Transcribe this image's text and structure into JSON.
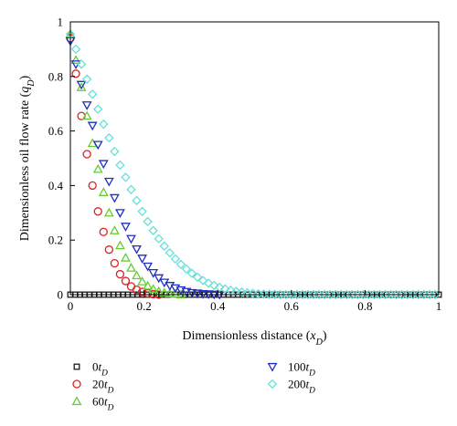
{
  "chart_data": {
    "type": "scatter",
    "xlabel": "Dimensionless distance (x_D)",
    "ylabel": "Dimensionless oil flow rate (q_D)",
    "xlim": [
      0,
      1
    ],
    "ylim": [
      0,
      1
    ],
    "x_ticks": [
      "0",
      "0.2",
      "0.4",
      "0.6",
      "0.8",
      "1"
    ],
    "y_ticks": [
      "0",
      "0.2",
      "0.4",
      "0.6",
      "0.8",
      "1"
    ],
    "grid": false,
    "legend_placement": "bottom",
    "series": [
      {
        "name": "0t_D",
        "marker": "square",
        "color": "#1a1a1a",
        "x": [
          0.0,
          0.013,
          0.026,
          0.039,
          0.052,
          0.065,
          0.078,
          0.091,
          0.104,
          0.117,
          0.13,
          0.143,
          0.156,
          0.169,
          0.182,
          0.195,
          0.208,
          0.221,
          0.234,
          0.247,
          0.26,
          0.273,
          0.286,
          0.299,
          0.312,
          0.325,
          0.338,
          0.351,
          0.364,
          0.377,
          0.39,
          0.403,
          0.416,
          0.429,
          0.442,
          0.455,
          0.468,
          0.481,
          0.494,
          0.507,
          0.52,
          0.533,
          0.546,
          0.559,
          0.572,
          0.585,
          0.598,
          0.611,
          0.624,
          0.637,
          0.65,
          0.663,
          0.676,
          0.689,
          0.702,
          0.715,
          0.728,
          0.741,
          0.754,
          0.767,
          0.78,
          0.793,
          0.806,
          0.819,
          0.832,
          0.845,
          0.858,
          0.871,
          0.884,
          0.897,
          0.91,
          0.923,
          0.936,
          0.949,
          0.962,
          0.975,
          0.988,
          1.0
        ],
        "y": [
          0,
          0,
          0,
          0,
          0,
          0,
          0,
          0,
          0,
          0,
          0,
          0,
          0,
          0,
          0,
          0,
          0,
          0,
          0,
          0,
          0,
          0,
          0,
          0,
          0,
          0,
          0,
          0,
          0,
          0,
          0,
          0,
          0,
          0,
          0,
          0,
          0,
          0,
          0,
          0,
          0,
          0,
          0,
          0,
          0,
          0,
          0,
          0,
          0,
          0,
          0,
          0,
          0,
          0,
          0,
          0,
          0,
          0,
          0,
          0,
          0,
          0,
          0,
          0,
          0,
          0,
          0,
          0,
          0,
          0,
          0,
          0,
          0,
          0,
          0,
          0,
          0,
          0
        ]
      },
      {
        "name": "20t_D",
        "marker": "circle",
        "color": "#e02020",
        "x": [
          0.0,
          0.015,
          0.03,
          0.045,
          0.06,
          0.075,
          0.09,
          0.105,
          0.12,
          0.135,
          0.15,
          0.165,
          0.18,
          0.195,
          0.21,
          0.225,
          0.24
        ],
        "y": [
          0.94,
          0.81,
          0.655,
          0.515,
          0.4,
          0.305,
          0.23,
          0.165,
          0.115,
          0.075,
          0.05,
          0.03,
          0.018,
          0.01,
          0.005,
          0.002,
          0.0
        ]
      },
      {
        "name": "60t_D",
        "marker": "triangle-up",
        "color": "#66cc33",
        "x": [
          0.0,
          0.015,
          0.03,
          0.045,
          0.06,
          0.075,
          0.09,
          0.105,
          0.12,
          0.135,
          0.15,
          0.165,
          0.18,
          0.195,
          0.21,
          0.225,
          0.24,
          0.255,
          0.27,
          0.285,
          0.3
        ],
        "y": [
          0.955,
          0.86,
          0.76,
          0.655,
          0.555,
          0.46,
          0.375,
          0.3,
          0.235,
          0.18,
          0.135,
          0.098,
          0.07,
          0.048,
          0.032,
          0.02,
          0.012,
          0.007,
          0.004,
          0.002,
          0.0
        ]
      },
      {
        "name": "100t_D",
        "marker": "triangle-down",
        "color": "#1f2fbf",
        "x": [
          0.0,
          0.015,
          0.03,
          0.045,
          0.06,
          0.075,
          0.09,
          0.105,
          0.12,
          0.135,
          0.15,
          0.165,
          0.18,
          0.195,
          0.21,
          0.225,
          0.24,
          0.255,
          0.27,
          0.285,
          0.3,
          0.315,
          0.33,
          0.345,
          0.36,
          0.375,
          0.39,
          0.405
        ],
        "y": [
          0.93,
          0.845,
          0.77,
          0.695,
          0.62,
          0.55,
          0.48,
          0.415,
          0.355,
          0.3,
          0.25,
          0.205,
          0.167,
          0.133,
          0.104,
          0.08,
          0.061,
          0.045,
          0.033,
          0.024,
          0.017,
          0.011,
          0.007,
          0.005,
          0.003,
          0.002,
          0.001,
          0.0
        ]
      },
      {
        "name": "200t_D",
        "marker": "diamond",
        "color": "#66e0d9",
        "x": [
          0.0,
          0.015,
          0.03,
          0.045,
          0.06,
          0.075,
          0.09,
          0.105,
          0.12,
          0.135,
          0.15,
          0.165,
          0.18,
          0.195,
          0.21,
          0.225,
          0.24,
          0.255,
          0.27,
          0.285,
          0.3,
          0.315,
          0.33,
          0.345,
          0.36,
          0.375,
          0.39,
          0.405,
          0.42,
          0.435,
          0.45,
          0.465,
          0.48,
          0.495,
          0.51,
          0.525,
          0.54,
          0.555,
          0.57,
          0.585,
          0.6,
          0.615,
          0.63,
          0.645,
          0.66,
          0.675,
          0.69,
          0.705,
          0.72,
          0.735,
          0.75,
          0.765,
          0.78,
          0.795,
          0.81,
          0.825,
          0.84,
          0.855,
          0.87,
          0.885,
          0.9,
          0.915,
          0.93,
          0.945,
          0.96,
          0.975,
          0.99
        ],
        "y": [
          0.955,
          0.9,
          0.845,
          0.79,
          0.735,
          0.68,
          0.625,
          0.575,
          0.525,
          0.475,
          0.43,
          0.385,
          0.345,
          0.305,
          0.268,
          0.235,
          0.205,
          0.178,
          0.153,
          0.131,
          0.111,
          0.094,
          0.078,
          0.064,
          0.052,
          0.042,
          0.034,
          0.027,
          0.021,
          0.016,
          0.012,
          0.009,
          0.007,
          0.005,
          0.003,
          0.002,
          0.001,
          0.001,
          0,
          0,
          0,
          0,
          0,
          0,
          0,
          0,
          0,
          0,
          0,
          0,
          0,
          0,
          0,
          0,
          0,
          0,
          0,
          0,
          0,
          0,
          0,
          0,
          0,
          0,
          0,
          0,
          0
        ]
      }
    ]
  }
}
